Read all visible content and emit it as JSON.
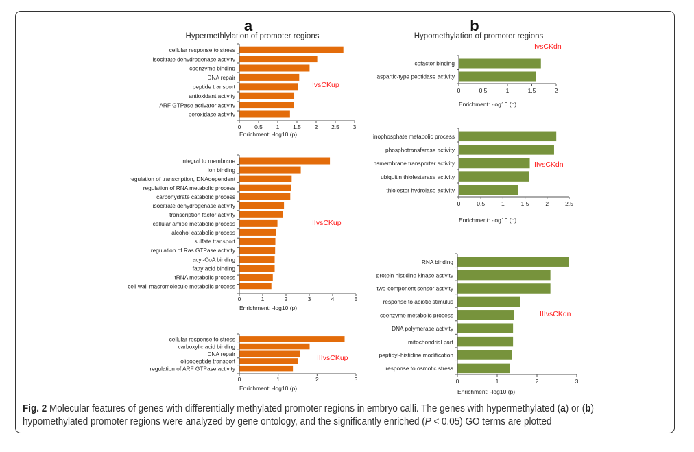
{
  "panels": [
    {
      "letter": "a",
      "title": "Hypermethlylation of promoter regions"
    },
    {
      "letter": "b",
      "title": "Hypomethylation of promoter regions"
    }
  ],
  "colors": {
    "hyper": "#e36c0a",
    "hypo": "#77933c",
    "comparison_label": "#ff2020"
  },
  "chart_data": [
    {
      "type": "bar",
      "orientation": "horizontal",
      "panel": "a",
      "comparison": "IvsCKup",
      "categories": [
        "cellular response to stress",
        "isocitrate dehydrogenase activity",
        "coenzyme binding",
        "DNA repair",
        "peptide transport",
        "antioxidant activity",
        "ARF GTPase activator activity",
        "peroxidase activity"
      ],
      "values": [
        2.7,
        2.02,
        1.82,
        1.55,
        1.51,
        1.42,
        1.41,
        1.31
      ],
      "xlabel": "Enrichment: -log10 (p)",
      "xlim": [
        0,
        3
      ],
      "xticks": [
        "0",
        "0.5",
        "1",
        "1.5",
        "2",
        "2.5",
        "3"
      ],
      "color": "#e36c0a"
    },
    {
      "type": "bar",
      "orientation": "horizontal",
      "panel": "a",
      "comparison": "IIvsCKup",
      "categories": [
        "integral to membrane",
        "ion binding",
        "regulation of transcription, DNAdependent",
        "regulation of RNA metabolic process",
        "carbohydrate catabolic process",
        "isocitrate dehydrogenase activity",
        "transcription factor activity",
        "cellular amide metabolic process",
        "alcohol catabolic process",
        "sulfate transport",
        "regulation of Ras GTPase activity",
        "acyl-CoA binding",
        "fatty acid binding",
        "tRNA metabolic process",
        "cell wall macromolecule metabolic process"
      ],
      "values": [
        3.87,
        2.62,
        2.23,
        2.2,
        2.17,
        1.9,
        1.84,
        1.62,
        1.55,
        1.53,
        1.52,
        1.5,
        1.5,
        1.42,
        1.36
      ],
      "xlabel": "Enrichment: -log10 (p)",
      "xlim": [
        0,
        5
      ],
      "xticks": [
        "0",
        "1",
        "2",
        "3",
        "4",
        "5"
      ],
      "color": "#e36c0a"
    },
    {
      "type": "bar",
      "orientation": "horizontal",
      "panel": "a",
      "comparison": "IIIvsCKup",
      "categories": [
        "cellular response to stress",
        "carboxylic acid binding",
        "DNA repair",
        "oligopeptide transport",
        "regulation of ARF GTPase activity"
      ],
      "values": [
        2.7,
        1.8,
        1.55,
        1.5,
        1.37
      ],
      "xlabel": "Enrichment: -log10 (p)",
      "xlim": [
        0,
        3
      ],
      "xticks": [
        "0",
        "1",
        "2",
        "3"
      ],
      "color": "#e36c0a"
    },
    {
      "type": "bar",
      "orientation": "horizontal",
      "panel": "b",
      "comparison": "IvsCKdn",
      "categories": [
        "cofactor binding",
        "aspartic-type peptidase activity"
      ],
      "values": [
        1.68,
        1.58
      ],
      "xlabel": "Enrichment: -log10 (p)",
      "xlim": [
        0,
        2
      ],
      "xticks": [
        "0",
        "0.5",
        "1",
        "1.5",
        "2"
      ],
      "color": "#77933c"
    },
    {
      "type": "bar",
      "orientation": "horizontal",
      "panel": "b",
      "comparison": "IIvsCKdn",
      "categories": [
        "inophosphate metabolic process",
        "phosphotransferase activity",
        "nsmembrane transporter activity",
        "ubiquitin thiolesterase activity",
        "thiolester hydrolase activity"
      ],
      "values": [
        2.2,
        2.15,
        1.6,
        1.58,
        1.33
      ],
      "xlabel": "Enrichment: -log10 (p)",
      "xlim": [
        0,
        2.5
      ],
      "xticks": [
        "0",
        "0.5",
        "1",
        "1.5",
        "2",
        "2.5"
      ],
      "color": "#77933c"
    },
    {
      "type": "bar",
      "orientation": "horizontal",
      "panel": "b",
      "comparison": "IIIvsCKdn",
      "categories": [
        "RNA binding",
        "protein histidine kinase activity",
        "two-component sensor activity",
        "response to abiotic stimulus",
        "coenzyme metabolic process",
        "DNA polymerase activity",
        "mitochondrial part",
        "peptidyl-histidine modification",
        "response to osmotic stress"
      ],
      "values": [
        2.8,
        2.33,
        2.33,
        1.57,
        1.42,
        1.39,
        1.39,
        1.37,
        1.31
      ],
      "xlabel": "Enrichment: -log10 (p)",
      "xlim": [
        0,
        3
      ],
      "xticks": [
        "0",
        "1",
        "2",
        "3"
      ],
      "color": "#77933c"
    }
  ],
  "caption": {
    "label": "Fig. 2",
    "text1": " Molecular features of genes with differentially methylated promoter regions in embryo calli. The genes with hypermethylated (",
    "a": "a",
    "text2": ") or (",
    "b": "b",
    "text3": ")",
    "text4": "hypomethylated promoter regions were analyzed by gene ontology, and the significantly enriched (",
    "p": "P",
    "text5": " < 0.05) GO terms are plotted"
  }
}
